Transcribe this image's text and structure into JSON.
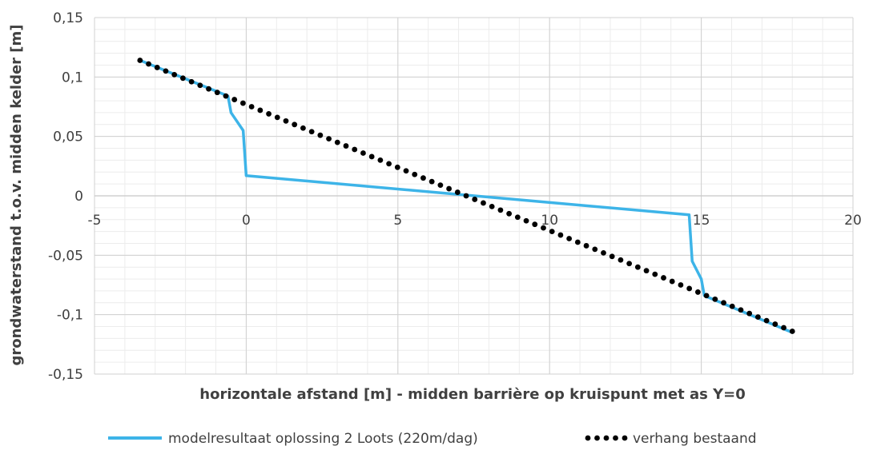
{
  "chart_data": {
    "type": "line",
    "title": "",
    "xlabel": "horizontale afstand [m] - midden barrière op kruispunt met as Y=0",
    "ylabel": "grondwaterstand t.o.v. midden kelder [m]",
    "xlim": [
      -5,
      20
    ],
    "ylim": [
      -0.15,
      0.15
    ],
    "x_ticks": [
      -5,
      0,
      5,
      10,
      15,
      20
    ],
    "x_tick_labels": [
      "-5",
      "0",
      "5",
      "10",
      "15",
      "20"
    ],
    "y_ticks": [
      0.15,
      0.1,
      0.05,
      0,
      -0.05,
      -0.1,
      -0.15
    ],
    "y_tick_labels": [
      "0,15",
      "0,1",
      "0,05",
      "0",
      "-0,05",
      "-0,1",
      "-0,15"
    ],
    "grid": true,
    "legend_position": "bottom",
    "series": [
      {
        "name": "modelresultaat oplossing 2 Loots (220m/dag)",
        "style": "solid",
        "color": "#3DB4E8",
        "x": [
          -3.5,
          -0.6,
          -0.5,
          -0.1,
          0.0,
          14.6,
          14.7,
          15.0,
          15.1,
          18.0
        ],
        "y": [
          0.114,
          0.084,
          0.07,
          0.055,
          0.017,
          -0.016,
          -0.055,
          -0.07,
          -0.084,
          -0.115
        ]
      },
      {
        "name": "verhang bestaand",
        "style": "dotted",
        "color": "#000000",
        "x": [
          -3.5,
          18.0
        ],
        "y": [
          0.114,
          -0.114
        ]
      }
    ]
  }
}
